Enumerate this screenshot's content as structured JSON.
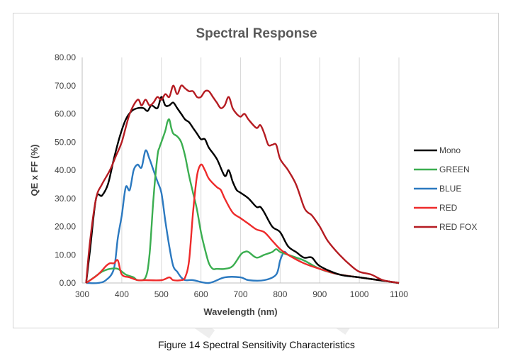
{
  "chart_data": {
    "type": "line",
    "title": "Spectral Response",
    "xlabel": "Wavelength (nm)",
    "ylabel": "QE x FF (%)",
    "xlim": [
      300,
      1100
    ],
    "ylim": [
      0,
      80
    ],
    "xticks": [
      "300",
      "400",
      "500",
      "600",
      "700",
      "800",
      "900",
      "1000",
      "1100"
    ],
    "yticks": [
      "0.00",
      "10.00",
      "20.00",
      "30.00",
      "40.00",
      "50.00",
      "60.00",
      "70.00",
      "80.00"
    ],
    "grid": "vertical",
    "legend_position": "right",
    "series": [
      {
        "name": "Mono",
        "color": "#000000",
        "x": [
          310,
          320,
          335,
          350,
          365,
          380,
          395,
          410,
          425,
          440,
          455,
          465,
          475,
          490,
          500,
          510,
          520,
          530,
          540,
          550,
          560,
          570,
          580,
          590,
          600,
          610,
          620,
          640,
          660,
          670,
          680,
          690,
          700,
          720,
          740,
          750,
          760,
          780,
          800,
          820,
          840,
          860,
          880,
          900,
          950,
          1000,
          1050,
          1100
        ],
        "y": [
          0,
          12,
          30,
          31,
          35,
          44,
          52,
          58,
          61,
          62,
          62,
          61,
          63,
          62,
          66,
          63,
          63,
          64,
          62,
          60,
          58,
          57,
          55,
          53,
          51,
          51,
          48,
          44,
          38,
          40,
          36,
          33,
          32,
          30,
          27,
          27,
          25,
          20,
          18,
          13,
          11,
          9,
          9,
          6,
          3,
          2,
          1,
          0
        ]
      },
      {
        "name": "GREEN",
        "color": "#3bae50",
        "x": [
          310,
          330,
          350,
          370,
          390,
          410,
          430,
          440,
          460,
          470,
          480,
          490,
          495,
          500,
          510,
          515,
          520,
          525,
          530,
          540,
          550,
          560,
          570,
          580,
          590,
          600,
          610,
          620,
          630,
          640,
          660,
          680,
          700,
          710,
          720,
          740,
          760,
          780,
          790,
          800,
          820,
          860,
          900,
          950,
          1000,
          1050,
          1100
        ],
        "y": [
          0,
          2,
          4,
          5,
          5,
          3,
          2,
          1,
          2,
          10,
          30,
          45,
          48,
          50,
          54,
          57,
          58,
          55,
          53,
          52,
          50,
          45,
          38,
          32,
          26,
          18,
          12,
          7,
          5,
          5,
          5,
          6,
          10,
          11,
          11,
          9,
          10,
          11,
          12,
          11,
          10,
          8,
          5,
          3,
          2,
          1,
          0
        ]
      },
      {
        "name": "BLUE",
        "color": "#2b79c0",
        "x": [
          310,
          340,
          360,
          380,
          390,
          400,
          410,
          420,
          430,
          440,
          450,
          460,
          470,
          480,
          490,
          500,
          510,
          520,
          530,
          540,
          550,
          560,
          580,
          620,
          660,
          700,
          720,
          760,
          790,
          800,
          810,
          820,
          840,
          860,
          900,
          950,
          1000,
          1050,
          1100
        ],
        "y": [
          0,
          0,
          1,
          5,
          16,
          24,
          34,
          33,
          40,
          42,
          41,
          47,
          44,
          40,
          36,
          32,
          22,
          13,
          6,
          4,
          2,
          1,
          1,
          0,
          2,
          2,
          1,
          1,
          3,
          8,
          11,
          10,
          9,
          8,
          5,
          3,
          2,
          1,
          0
        ]
      },
      {
        "name": "RED",
        "color": "#ee2b2b",
        "x": [
          310,
          340,
          360,
          370,
          380,
          390,
          400,
          420,
          440,
          460,
          500,
          520,
          530,
          550,
          560,
          570,
          580,
          590,
          600,
          610,
          620,
          640,
          650,
          660,
          680,
          700,
          720,
          740,
          760,
          780,
          800,
          820,
          860,
          900,
          950,
          1000,
          1050,
          1100
        ],
        "y": [
          0,
          3,
          6,
          7,
          7,
          8,
          3,
          2,
          1,
          1,
          1,
          2,
          1,
          1,
          2,
          8,
          25,
          38,
          42,
          40,
          37,
          34,
          33,
          30,
          25,
          23,
          21,
          19,
          18,
          15,
          12,
          10,
          7,
          5,
          3,
          2,
          1,
          0
        ]
      },
      {
        "name": "RED FOX",
        "color": "#b51c22",
        "x": [
          310,
          320,
          335,
          350,
          370,
          385,
          400,
          420,
          440,
          450,
          460,
          470,
          480,
          490,
          500,
          510,
          520,
          530,
          540,
          550,
          560,
          570,
          580,
          590,
          600,
          610,
          620,
          630,
          640,
          650,
          660,
          670,
          680,
          690,
          700,
          710,
          720,
          740,
          750,
          760,
          770,
          780,
          790,
          800,
          820,
          840,
          860,
          870,
          880,
          900,
          920,
          950,
          980,
          1000,
          1030,
          1060,
          1100
        ],
        "y": [
          0,
          15,
          30,
          35,
          40,
          45,
          50,
          60,
          65,
          63,
          65,
          63,
          64,
          66,
          65,
          67,
          66,
          70,
          67,
          70,
          69,
          68,
          68,
          66,
          66,
          68,
          68,
          66,
          64,
          62,
          63,
          66,
          62,
          60,
          59,
          60,
          58,
          55,
          56,
          53,
          49,
          49,
          49,
          44,
          40,
          35,
          27,
          25,
          24,
          20,
          15,
          10,
          6,
          4,
          3,
          1,
          0
        ]
      }
    ]
  },
  "caption": "Figure 14 Spectral Sensitivity Characteristics"
}
